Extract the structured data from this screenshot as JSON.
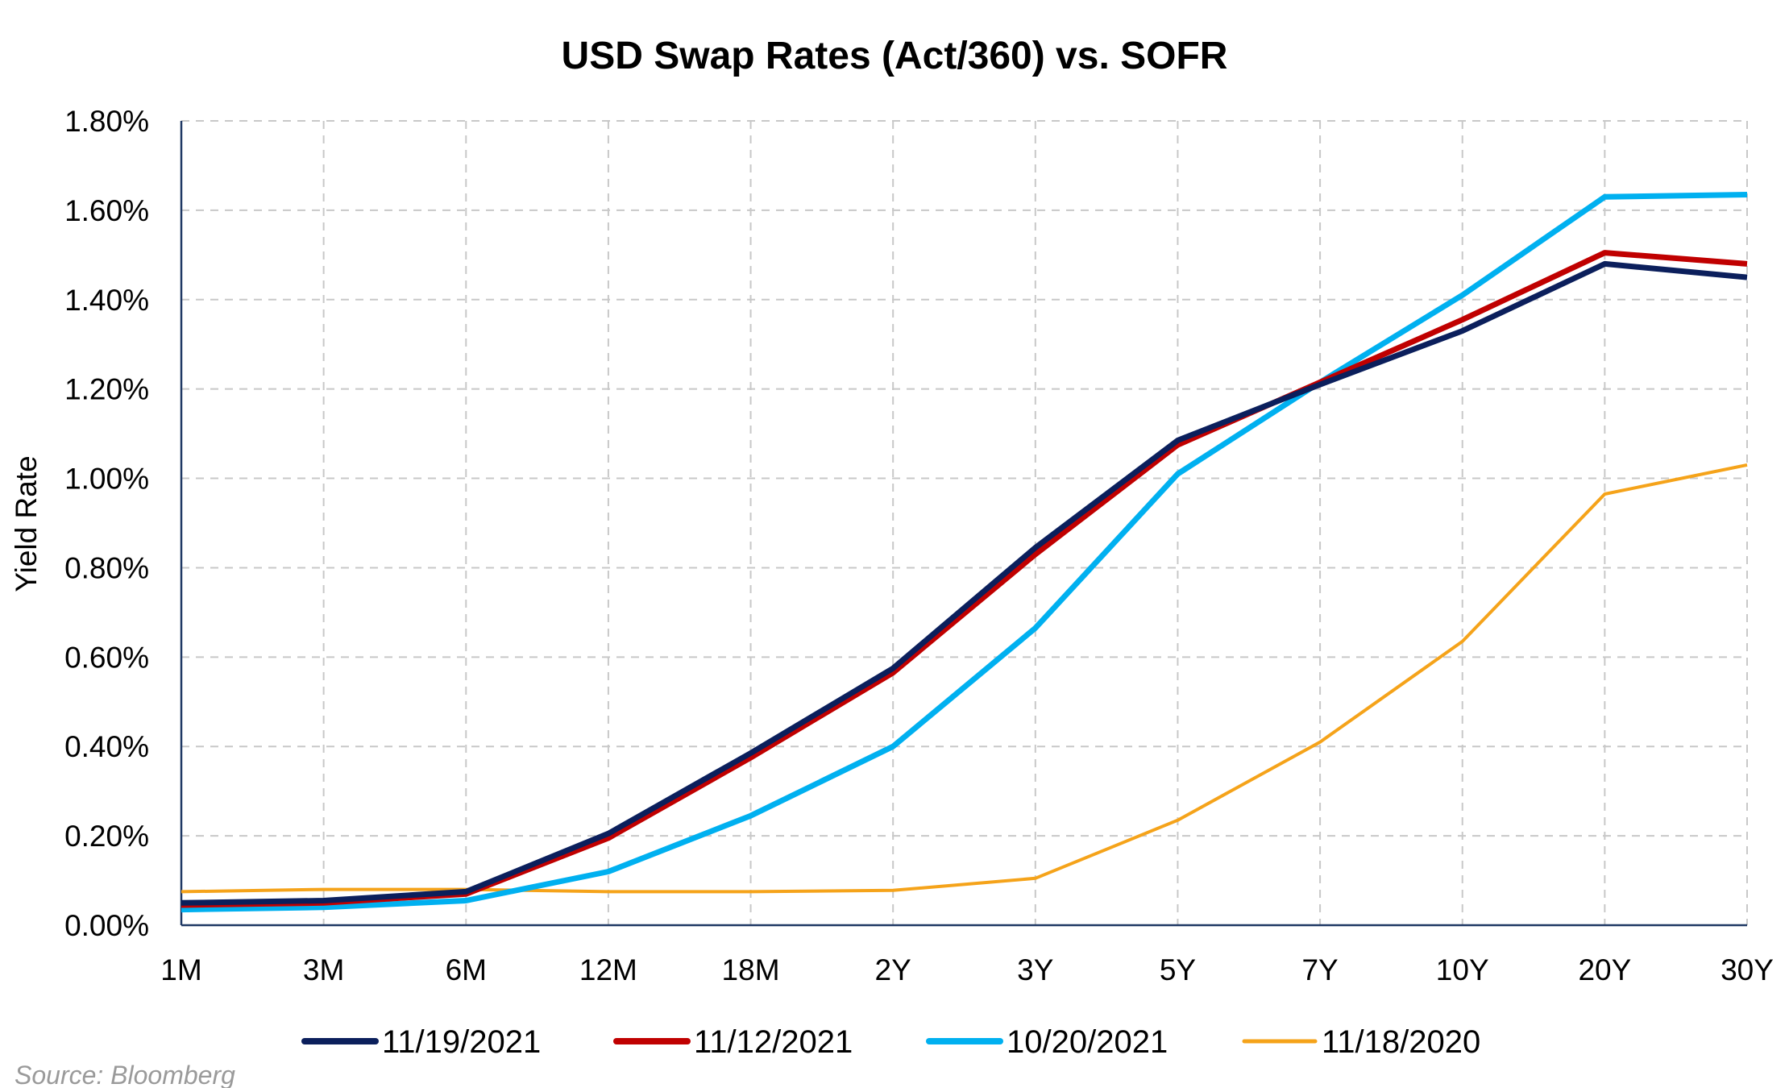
{
  "chart_data": {
    "type": "line",
    "title": "USD Swap Rates (Act/360) vs. SOFR",
    "xlabel": "",
    "ylabel": "Yield Rate",
    "categories": [
      "1M",
      "3M",
      "6M",
      "12M",
      "18M",
      "2Y",
      "3Y",
      "5Y",
      "7Y",
      "10Y",
      "20Y",
      "30Y"
    ],
    "ylim": [
      0,
      1.8
    ],
    "yticks": [
      {
        "value": 0.0,
        "label": "0.00%"
      },
      {
        "value": 0.2,
        "label": "0.20%"
      },
      {
        "value": 0.4,
        "label": "0.40%"
      },
      {
        "value": 0.6,
        "label": "0.60%"
      },
      {
        "value": 0.8,
        "label": "0.80%"
      },
      {
        "value": 1.0,
        "label": "1.00%"
      },
      {
        "value": 1.2,
        "label": "1.20%"
      },
      {
        "value": 1.4,
        "label": "1.40%"
      },
      {
        "value": 1.6,
        "label": "1.60%"
      },
      {
        "value": 1.8,
        "label": "1.80%"
      }
    ],
    "grid": true,
    "legend_position": "bottom",
    "series": [
      {
        "name": "11/19/2021",
        "color": "#0b1f5c",
        "values": [
          0.05,
          0.055,
          0.075,
          0.205,
          0.385,
          0.575,
          0.845,
          1.085,
          1.21,
          1.33,
          1.48,
          1.45
        ]
      },
      {
        "name": "11/12/2021",
        "color": "#c00000",
        "values": [
          0.045,
          0.05,
          0.07,
          0.195,
          0.375,
          0.565,
          0.83,
          1.075,
          1.215,
          1.355,
          1.505,
          1.48
        ]
      },
      {
        "name": "10/20/2021",
        "color": "#00b0f0",
        "values": [
          0.035,
          0.04,
          0.055,
          0.12,
          0.245,
          0.4,
          0.665,
          1.01,
          1.215,
          1.41,
          1.63,
          1.635
        ]
      },
      {
        "name": "11/18/2020",
        "color": "#f5a31a",
        "values": [
          0.075,
          0.08,
          0.08,
          0.075,
          0.075,
          0.078,
          0.105,
          0.235,
          0.41,
          0.635,
          0.965,
          1.03
        ]
      }
    ],
    "source": "Source: Bloomberg"
  }
}
